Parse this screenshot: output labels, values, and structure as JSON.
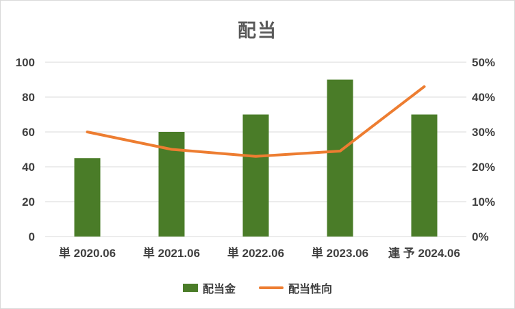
{
  "colors": {
    "bar": "#4a7c28",
    "line": "#ed7d31",
    "grid": "#d9d9d9",
    "axis_text": "#404040",
    "title_text": "#595959",
    "border": "#d9d9d9"
  },
  "chart_data": {
    "type": "bar",
    "title": "配当",
    "categories": [
      "単 2020.06",
      "単 2021.06",
      "単 2022.06",
      "単 2023.06",
      "連 予 2024.06"
    ],
    "series": [
      {
        "name": "配当金",
        "type": "bar",
        "axis": "left",
        "values": [
          45,
          60,
          70,
          90,
          70
        ]
      },
      {
        "name": "配当性向",
        "type": "line",
        "axis": "right",
        "values": [
          30,
          25,
          23,
          24.5,
          43
        ]
      }
    ],
    "left_axis": {
      "min": 0,
      "max": 100,
      "step": 20,
      "ticks": [
        "0",
        "20",
        "40",
        "60",
        "80",
        "100"
      ]
    },
    "right_axis": {
      "min": 0,
      "max": 50,
      "step": 10,
      "ticks": [
        "0%",
        "10%",
        "20%",
        "30%",
        "40%",
        "50%"
      ]
    },
    "grid": true,
    "legend_position": "bottom"
  }
}
